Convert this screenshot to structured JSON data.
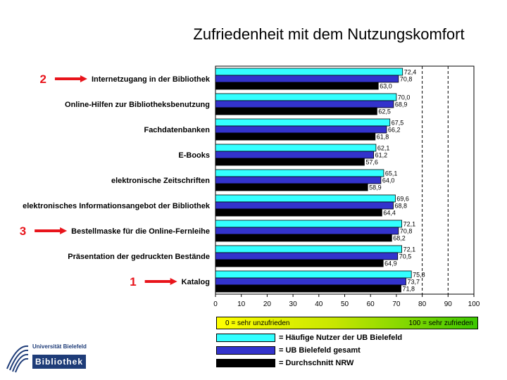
{
  "chart_data": {
    "type": "bar",
    "orientation": "horizontal",
    "title": "Zufriedenheit mit dem Nutzungskomfort",
    "categories": [
      "Internetzugang in der Bibliothek",
      "Online-Hilfen zur Bibliotheksbenutzung",
      "Fachdatenbanken",
      "E-Books",
      "elektronische Zeitschriften",
      "elektronisches Informationsangebot der Bibliothek",
      "Bestellmaske für die Online-Fernleihe",
      "Präsentation der gedruckten Bestände",
      "Katalog"
    ],
    "series": [
      {
        "name": "= Häufige Nutzer der UB Bielefeld",
        "color": "#33ffff",
        "values": [
          72.4,
          70.0,
          67.5,
          62.1,
          65.1,
          69.6,
          72.1,
          72.1,
          75.8
        ],
        "labels": [
          "72,4",
          "70,0",
          "67,5",
          "62,1",
          "65,1",
          "69,6",
          "72,1",
          "72,1",
          "75,8"
        ]
      },
      {
        "name": "= UB Bielefeld gesamt",
        "color": "#3333cc",
        "values": [
          70.8,
          68.9,
          66.2,
          61.2,
          64.0,
          68.8,
          70.8,
          70.5,
          73.7
        ],
        "labels": [
          "70,8",
          "68,9",
          "66,2",
          "61,2",
          "64,0",
          "68,8",
          "70,8",
          "70,5",
          "73,7"
        ]
      },
      {
        "name": "= Durchschnitt NRW",
        "color": "#000000",
        "values": [
          63.0,
          62.5,
          61.8,
          57.6,
          58.9,
          64.4,
          68.2,
          64.9,
          71.8
        ],
        "labels": [
          "63,0",
          "62,5",
          "61,8",
          "57,6",
          "58,9",
          "64,4",
          "68,2",
          "64,9",
          "71,8"
        ]
      }
    ],
    "ranks": {
      "0": "2",
      "6": "3",
      "8": "1"
    },
    "xlim": [
      0,
      100
    ],
    "xticks": [
      0,
      10,
      20,
      30,
      40,
      50,
      60,
      70,
      80,
      90,
      100
    ],
    "reference_lines": [
      80,
      90
    ],
    "plot_background": "#c0c0c0",
    "rank_color": "#e8141b"
  },
  "scale": {
    "left_label": "0 = sehr unzufrieden",
    "right_label": "100 = sehr zufrieden"
  },
  "logo": {
    "line1": "Universität Bielefeld",
    "line2": "Bibliothek"
  }
}
